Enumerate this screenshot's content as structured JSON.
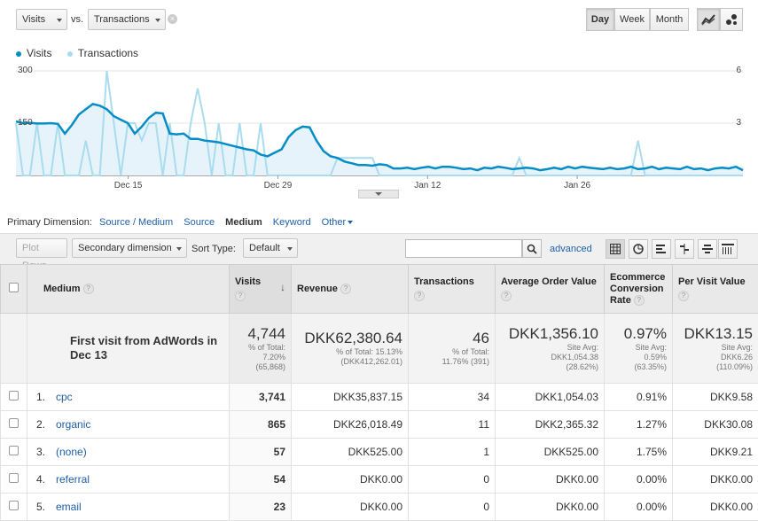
{
  "controls": {
    "metric1": "Visits",
    "vs": "vs.",
    "metric2": "Transactions",
    "periods": [
      "Day",
      "Week",
      "Month"
    ],
    "active_period": "Day"
  },
  "legend": [
    {
      "label": "Visits",
      "color": "#058dc7"
    },
    {
      "label": "Transactions",
      "color": "#a9dcee"
    }
  ],
  "chart_data": {
    "type": "line",
    "x_ticks": [
      "Dec 15",
      "Dec 29",
      "Jan 12",
      "Jan 26"
    ],
    "y_left_ticks": [
      "300",
      "150"
    ],
    "y_right_ticks": [
      "6",
      "3"
    ],
    "ylim_left": [
      0,
      300
    ],
    "ylim_right": [
      0,
      6
    ],
    "series": [
      {
        "name": "Visits",
        "axis": "left",
        "color": "#058dc7",
        "values": [
          155,
          150,
          151,
          149,
          149,
          150,
          148,
          120,
          145,
          175,
          190,
          205,
          200,
          190,
          170,
          160,
          150,
          120,
          140,
          165,
          180,
          178,
          120,
          118,
          120,
          105,
          105,
          100,
          98,
          95,
          90,
          85,
          80,
          75,
          72,
          60,
          55,
          65,
          75,
          110,
          130,
          140,
          138,
          100,
          70,
          55,
          50,
          40,
          35,
          30,
          30,
          28,
          32,
          30,
          20,
          20,
          22,
          18,
          22,
          25,
          20,
          25,
          25,
          22,
          18,
          20,
          15,
          22,
          20,
          25,
          22,
          18,
          20,
          22,
          20,
          15,
          18,
          22,
          18,
          25,
          20,
          25,
          22,
          20,
          18,
          22,
          18,
          20,
          25,
          18,
          20,
          25,
          18,
          22,
          20,
          18,
          25,
          18,
          20,
          15,
          20,
          22,
          20,
          25,
          15
        ]
      },
      {
        "name": "Transactions",
        "axis": "right",
        "color": "#a9dcee",
        "values": [
          3,
          0,
          0,
          3,
          0,
          0,
          3,
          0,
          0,
          0,
          2,
          0,
          0,
          6,
          3,
          0,
          3,
          3,
          2,
          3,
          3,
          0,
          3,
          0,
          0,
          3,
          5,
          3,
          0,
          3,
          0,
          0,
          3,
          0,
          0,
          3,
          0,
          0,
          0,
          0,
          0,
          0,
          0,
          0,
          0,
          0,
          1,
          1,
          1,
          1,
          1,
          1,
          0,
          0,
          0,
          0,
          0,
          0,
          0,
          0,
          0,
          0,
          0,
          0,
          0,
          0,
          0,
          0,
          0,
          0,
          0,
          0,
          1,
          0,
          0,
          0,
          0,
          0,
          0,
          0,
          0,
          0,
          0,
          0,
          0,
          0,
          0,
          0,
          0,
          2,
          0,
          0,
          0,
          0,
          0,
          0,
          0,
          0,
          0,
          0,
          0,
          0,
          0,
          0,
          0
        ]
      }
    ]
  },
  "dimension_bar": {
    "label": "Primary Dimension:",
    "items": [
      "Source / Medium",
      "Source",
      "Medium",
      "Keyword",
      "Other"
    ],
    "active": "Medium"
  },
  "toolbar": {
    "plot_rows": "Plot Rows",
    "secondary": "Secondary dimension",
    "sort_label": "Sort Type:",
    "sort_value": "Default",
    "advanced": "advanced"
  },
  "table": {
    "headers": [
      "Medium",
      "Visits",
      "Revenue",
      "Transactions",
      "Average Order Value",
      "Ecommerce Conversion Rate",
      "Per Visit Value"
    ],
    "summary": {
      "label": "First visit from AdWords in Dec 13",
      "cells": [
        {
          "main": "4,744",
          "sub": [
            "% of Total:",
            "7.20%",
            "(65,868)"
          ]
        },
        {
          "main": "DKK62,380.64",
          "sub": [
            "% of Total: 15.13%",
            "(DKK412,262.01)"
          ]
        },
        {
          "main": "46",
          "sub": [
            "% of Total:",
            "11.76% (391)"
          ]
        },
        {
          "main": "DKK1,356.10",
          "sub": [
            "Site Avg:",
            "DKK1,054.38",
            "(28.62%)"
          ]
        },
        {
          "main": "0.97%",
          "sub": [
            "Site Avg:",
            "0.59%",
            "(63.35%)"
          ]
        },
        {
          "main": "DKK13.15",
          "sub": [
            "Site Avg:",
            "DKK6.26",
            "(110.09%)"
          ]
        }
      ]
    },
    "rows": [
      {
        "num": "1.",
        "medium": "cpc",
        "visits": "3,741",
        "revenue": "DKK35,837.15",
        "transactions": "34",
        "aov": "DKK1,054.03",
        "conv": "0.91%",
        "pvv": "DKK9.58"
      },
      {
        "num": "2.",
        "medium": "organic",
        "visits": "865",
        "revenue": "DKK26,018.49",
        "transactions": "11",
        "aov": "DKK2,365.32",
        "conv": "1.27%",
        "pvv": "DKK30.08"
      },
      {
        "num": "3.",
        "medium": "(none)",
        "visits": "57",
        "revenue": "DKK525.00",
        "transactions": "1",
        "aov": "DKK525.00",
        "conv": "1.75%",
        "pvv": "DKK9.21"
      },
      {
        "num": "4.",
        "medium": "referral",
        "visits": "54",
        "revenue": "DKK0.00",
        "transactions": "0",
        "aov": "DKK0.00",
        "conv": "0.00%",
        "pvv": "DKK0.00"
      },
      {
        "num": "5.",
        "medium": "email",
        "visits": "23",
        "revenue": "DKK0.00",
        "transactions": "0",
        "aov": "DKK0.00",
        "conv": "0.00%",
        "pvv": "DKK0.00"
      }
    ]
  }
}
